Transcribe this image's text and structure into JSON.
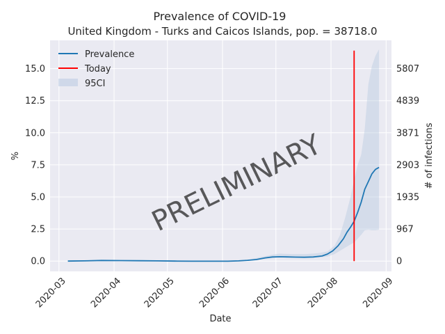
{
  "chart_data": {
    "type": "line",
    "title": "Prevalence of COVID-19",
    "subtitle": "United Kingdom - Turks and Caicos Islands, pop. = 38718.0",
    "xlabel": "Date",
    "ylabel": "%",
    "ylabel_right": "# of infections",
    "watermark": "PRELIMINARY",
    "xlim": [
      "2020-02-25",
      "2020-09-04"
    ],
    "ylim": [
      -0.8,
      17.2
    ],
    "x_ticks": [
      "2020-03",
      "2020-04",
      "2020-05",
      "2020-06",
      "2020-07",
      "2020-08",
      "2020-09"
    ],
    "y_ticks": [
      "0.0",
      "2.5",
      "5.0",
      "7.5",
      "10.0",
      "12.5",
      "15.0"
    ],
    "y_tick_values": [
      0,
      2.5,
      5,
      7.5,
      10,
      12.5,
      15
    ],
    "y_right_ticks": [
      "0",
      "967",
      "1935",
      "2903",
      "3871",
      "4839",
      "5807"
    ],
    "grid": true,
    "legend_position": "top-left",
    "legend": [
      "Prevalence",
      "Today",
      "95CI"
    ],
    "colors": {
      "prevalence": "#1f77b4",
      "today": "#ff0000",
      "ci": "#b0c4de",
      "grid": "#ffffff",
      "plot_bg": "#eaeaf2",
      "watermark": "#9e9e9e"
    },
    "today": {
      "date": "2020-08-14",
      "y_range": [
        0,
        16.4
      ]
    },
    "series": [
      {
        "name": "Prevalence",
        "x": [
          "2020-03-06",
          "2020-03-15",
          "2020-03-25",
          "2020-04-05",
          "2020-04-15",
          "2020-04-25",
          "2020-05-05",
          "2020-05-15",
          "2020-05-25",
          "2020-06-04",
          "2020-06-10",
          "2020-06-15",
          "2020-06-20",
          "2020-06-25",
          "2020-06-29",
          "2020-07-03",
          "2020-07-07",
          "2020-07-12",
          "2020-07-17",
          "2020-07-22",
          "2020-07-27",
          "2020-07-30",
          "2020-08-02",
          "2020-08-05",
          "2020-08-08",
          "2020-08-10",
          "2020-08-12",
          "2020-08-14",
          "2020-08-16",
          "2020-08-18",
          "2020-08-20",
          "2020-08-22",
          "2020-08-24",
          "2020-08-26",
          "2020-08-28"
        ],
        "values": [
          0.0,
          0.02,
          0.05,
          0.04,
          0.03,
          0.02,
          0.0,
          -0.01,
          -0.01,
          -0.01,
          0.02,
          0.06,
          0.12,
          0.25,
          0.32,
          0.34,
          0.33,
          0.31,
          0.3,
          0.32,
          0.4,
          0.55,
          0.8,
          1.2,
          1.75,
          2.25,
          2.65,
          3.1,
          3.8,
          4.6,
          5.6,
          6.2,
          6.8,
          7.15,
          7.3
        ]
      },
      {
        "name": "95CI",
        "x": [
          "2020-03-06",
          "2020-04-05",
          "2020-05-05",
          "2020-06-04",
          "2020-06-15",
          "2020-06-22",
          "2020-06-29",
          "2020-07-03",
          "2020-07-10",
          "2020-07-18",
          "2020-07-25",
          "2020-07-30",
          "2020-08-03",
          "2020-08-06",
          "2020-08-09",
          "2020-08-12",
          "2020-08-14",
          "2020-08-16",
          "2020-08-18",
          "2020-08-20",
          "2020-08-22",
          "2020-08-24",
          "2020-08-26",
          "2020-08-28"
        ],
        "lower": [
          0.0,
          0.03,
          -0.01,
          -0.02,
          0.02,
          0.12,
          0.24,
          0.28,
          0.27,
          0.26,
          0.28,
          0.35,
          0.55,
          0.8,
          1.05,
          1.3,
          1.45,
          1.75,
          2.05,
          2.4,
          2.45,
          2.4,
          2.4,
          2.45
        ],
        "upper": [
          0.01,
          0.06,
          0.02,
          0.0,
          0.1,
          0.3,
          0.5,
          0.58,
          0.55,
          0.55,
          0.62,
          0.75,
          1.2,
          2.0,
          3.4,
          5.0,
          6.3,
          7.5,
          8.3,
          10.3,
          13.8,
          15.2,
          16.0,
          16.5
        ]
      }
    ]
  }
}
